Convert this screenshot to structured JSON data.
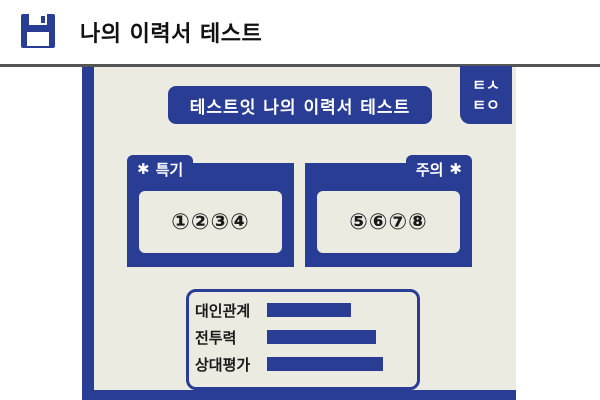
{
  "header": {
    "title": "나의 이력서 테스트",
    "icon": "floppy-disk-icon"
  },
  "card": {
    "title": "테스트잇 나의 이력서 테스트",
    "stamp": [
      "ㅌㅅ",
      "ㅌㅇ"
    ],
    "panels": {
      "left": {
        "tab": "특기",
        "tab_icon": "asterisk-icon",
        "content": "①②③④"
      },
      "right": {
        "tab": "주의",
        "tab_icon": "asterisk-icon",
        "content": "⑤⑥⑦⑧"
      }
    },
    "stats": [
      {
        "label": "대인관계",
        "value": 0.6
      },
      {
        "label": "전투력",
        "value": 0.78
      },
      {
        "label": "상대평가",
        "value": 0.83
      }
    ]
  },
  "colors": {
    "accent": "#2a3d94",
    "paper": "#ecebe2",
    "separator": "#555555"
  }
}
